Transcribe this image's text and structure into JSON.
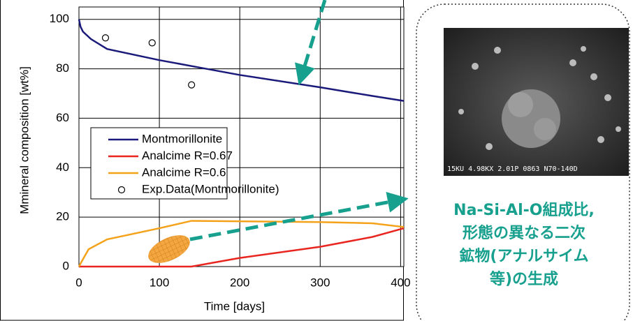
{
  "chart_data": {
    "type": "line",
    "x_label": "Time [days]",
    "y_label": "Mmineral composition [wt%]",
    "xlim": [
      0,
      404
    ],
    "ylim": [
      0,
      105
    ],
    "xticks": [
      0,
      100,
      200,
      300,
      400
    ],
    "yticks": [
      0,
      20,
      40,
      60,
      80,
      100
    ],
    "grid": true,
    "legend": "center-left",
    "series": [
      {
        "name": "Montmorillonite",
        "color": "#1a1a7a",
        "style": "line",
        "x": [
          0,
          2,
          5,
          15,
          35,
          100,
          150,
          200,
          300,
          365,
          404
        ],
        "values": [
          100,
          97,
          95,
          92,
          88,
          83.5,
          80.5,
          77.5,
          72.5,
          69,
          67
        ]
      },
      {
        "name": "Analcime R=0.67",
        "color": "#e8251e",
        "style": "line",
        "x": [
          0,
          140,
          200,
          300,
          365,
          404
        ],
        "values": [
          0,
          0,
          3.5,
          8,
          12,
          15.5
        ]
      },
      {
        "name": "Analcime R=0.6",
        "color": "#f5a21b",
        "style": "line",
        "x": [
          0,
          5,
          12,
          35,
          100,
          140,
          300,
          365,
          404
        ],
        "values": [
          0,
          3,
          7,
          11,
          15.5,
          18.5,
          18,
          17.5,
          16
        ]
      },
      {
        "name": "Exp.Data(Montmorillonite)",
        "color": "#000000",
        "style": "marker",
        "x": [
          33,
          91,
          140
        ],
        "values": [
          92.5,
          90.5,
          73.5
        ]
      }
    ]
  },
  "photo": {
    "caption": "15KU  4.98KX 2.01P 0863 N70-140D"
  },
  "annotation": {
    "lines": [
      "Na-Si-Al-O組成比,",
      "形態の異なる二次",
      "鉱物(アナルサイム",
      "等)の生成"
    ]
  }
}
